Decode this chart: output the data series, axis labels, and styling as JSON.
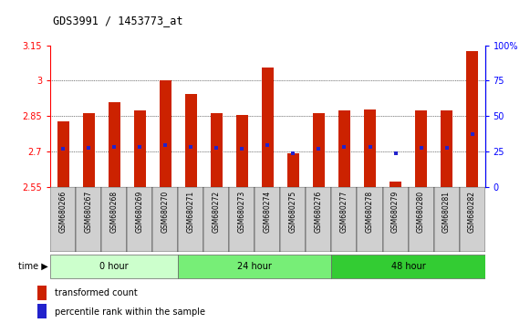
{
  "title": "GDS3991 / 1453773_at",
  "samples": [
    "GSM680266",
    "GSM680267",
    "GSM680268",
    "GSM680269",
    "GSM680270",
    "GSM680271",
    "GSM680272",
    "GSM680273",
    "GSM680274",
    "GSM680275",
    "GSM680276",
    "GSM680277",
    "GSM680278",
    "GSM680279",
    "GSM680280",
    "GSM680281",
    "GSM680282"
  ],
  "bar_tops": [
    2.83,
    2.865,
    2.91,
    2.875,
    3.0,
    2.945,
    2.865,
    2.855,
    3.055,
    2.695,
    2.865,
    2.875,
    2.88,
    2.575,
    2.875,
    2.875,
    3.125
  ],
  "bar_bottom": 2.55,
  "blue_vals": [
    2.713,
    2.718,
    2.722,
    2.722,
    2.728,
    2.722,
    2.718,
    2.713,
    2.728,
    2.695,
    2.713,
    2.722,
    2.722,
    2.695,
    2.718,
    2.718,
    2.775
  ],
  "ylim_left": [
    2.55,
    3.15
  ],
  "ylim_right": [
    0,
    100
  ],
  "yticks_left": [
    2.55,
    2.7,
    2.85,
    3.0,
    3.15
  ],
  "ytick_labels_left": [
    "2.55",
    "2.7",
    "2.85",
    "3",
    "3.15"
  ],
  "yticks_right": [
    0,
    25,
    50,
    75,
    100
  ],
  "ytick_labels_right": [
    "0",
    "25",
    "50",
    "75",
    "100%"
  ],
  "bar_color": "#cc2200",
  "blue_color": "#2222cc",
  "groups": [
    {
      "label": "0 hour",
      "start": 0,
      "end": 5,
      "color": "#ccffcc"
    },
    {
      "label": "24 hour",
      "start": 5,
      "end": 11,
      "color": "#77ee77"
    },
    {
      "label": "48 hour",
      "start": 11,
      "end": 17,
      "color": "#33cc33"
    }
  ],
  "legend_labels": [
    "transformed count",
    "percentile rank within the sample"
  ],
  "bar_width": 0.45
}
